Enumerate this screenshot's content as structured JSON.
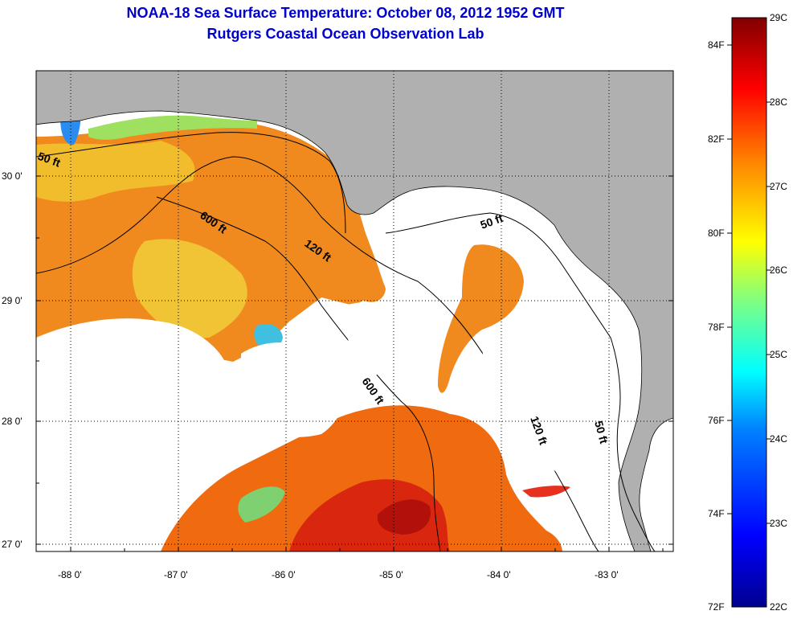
{
  "title": {
    "line1": "NOAA-18 Sea Surface Temperature:  October 08, 2012 1952 GMT",
    "line2": "Rutgers Coastal Ocean Observation Lab"
  },
  "map": {
    "lon_labels": [
      "-88 0'",
      "-87 0'",
      "-86 0'",
      "-85 0'",
      "-84 0'",
      "-83 0'"
    ],
    "lat_labels": [
      "30 0'",
      "29 0'",
      "28 0'",
      "27 0'"
    ],
    "contour_labels": [
      "50 ft",
      "600 ft",
      "120 ft",
      "50 ft",
      "600 ft",
      "120 ft",
      "50 ft"
    ],
    "colors": {
      "land": "#b0b0b0",
      "cloud": "#ffffff",
      "contour": "#000000"
    }
  },
  "colorbar": {
    "fahrenheit_labels": [
      "84F",
      "82F",
      "80F",
      "78F",
      "76F",
      "74F",
      "72F"
    ],
    "celsius_labels": [
      "29C",
      "28C",
      "27C",
      "26C",
      "25C",
      "24C",
      "23C",
      "22C"
    ],
    "range_c": [
      22,
      29
    ],
    "range_f": [
      72,
      84.2
    ],
    "colors": [
      "#00008f",
      "#0000ff",
      "#0080ff",
      "#00ffff",
      "#80ff80",
      "#ffff00",
      "#ff8000",
      "#ff0000",
      "#800000"
    ]
  }
}
